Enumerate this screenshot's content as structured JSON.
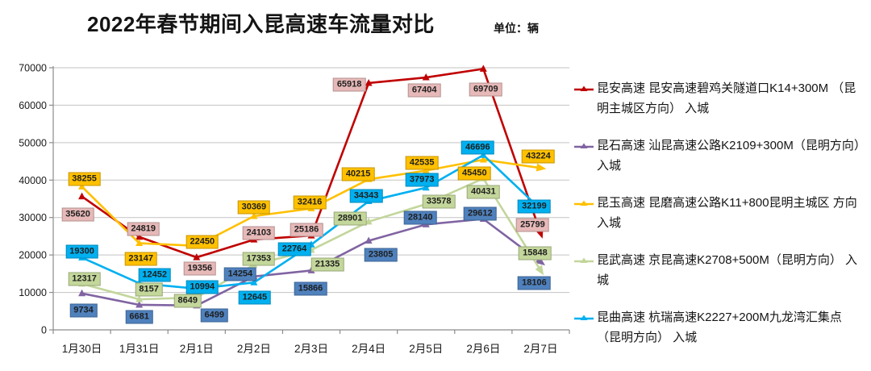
{
  "title": "2022年春节期间入昆高速车流量对比",
  "unit_label": "单位：辆",
  "chart_data": {
    "type": "line",
    "title": "2022年春节期间入昆高速车流量对比",
    "unit": "辆",
    "categories": [
      "1月30日",
      "1月31日",
      "2月1日",
      "2月2日",
      "2月3日",
      "2月4日",
      "2月5日",
      "2月6日",
      "2月7日"
    ],
    "yticks": [
      "0",
      "10000",
      "20000",
      "30000",
      "40000",
      "50000",
      "60000",
      "70000"
    ],
    "ylim": [
      0,
      70000
    ],
    "grid": true,
    "legend_position": "right",
    "marker_shape": "triangle",
    "series": [
      {
        "name": "昆安高速",
        "legend": "昆安高速 昆安高速碧鸡关隧道口K14+300M （昆明主城区方向） 入城",
        "color": "#C00000",
        "label_bg": "#E6B9B8",
        "values": [
          35620,
          24819,
          19356,
          24103,
          25186,
          65918,
          67404,
          69709,
          25799
        ]
      },
      {
        "name": "昆石高速",
        "legend": "昆石高速 汕昆高速公路K2109+300M（昆明方向） 入城",
        "color": "#8064A2",
        "label_bg": "#4F81BD",
        "values": [
          9734,
          6681,
          6499,
          14254,
          15866,
          23805,
          28140,
          29612,
          18106
        ]
      },
      {
        "name": "昆玉高速",
        "legend": "昆玉高速 昆磨高速公路K11+800昆明主城区 方向 入城",
        "color": "#FFC000",
        "label_bg": "#FFC000",
        "values": [
          38255,
          23147,
          22450,
          30369,
          32416,
          40215,
          42535,
          45450,
          43224
        ]
      },
      {
        "name": "昆武高速",
        "legend": "昆武高速 京昆高速K2708+500M（昆明方向） 入城",
        "color": "#C3D69B",
        "label_bg": "#C4D79B",
        "values": [
          12317,
          8157,
          8649,
          17353,
          21335,
          28901,
          33578,
          40431,
          15848
        ]
      },
      {
        "name": "昆曲高速",
        "legend": "昆曲高速 杭瑞高速K2227+200M九龙湾汇集点 （昆明方向） 入城",
        "color": "#00B0F0",
        "label_bg": "#00B0F0",
        "values": [
          19300,
          12452,
          10994,
          12645,
          22764,
          34343,
          37973,
          46696,
          32199
        ]
      }
    ]
  }
}
